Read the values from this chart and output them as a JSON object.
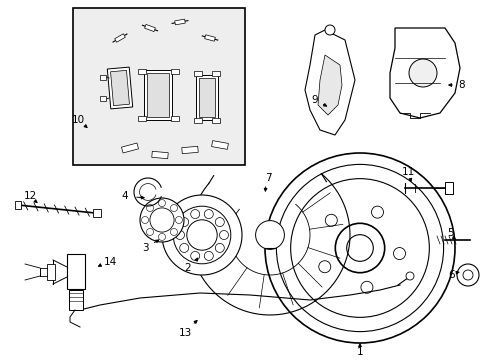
{
  "background_color": "#ffffff",
  "line_color": "#000000",
  "box_fill": "#eeeeee",
  "figsize": [
    4.89,
    3.6
  ],
  "dpi": 100
}
